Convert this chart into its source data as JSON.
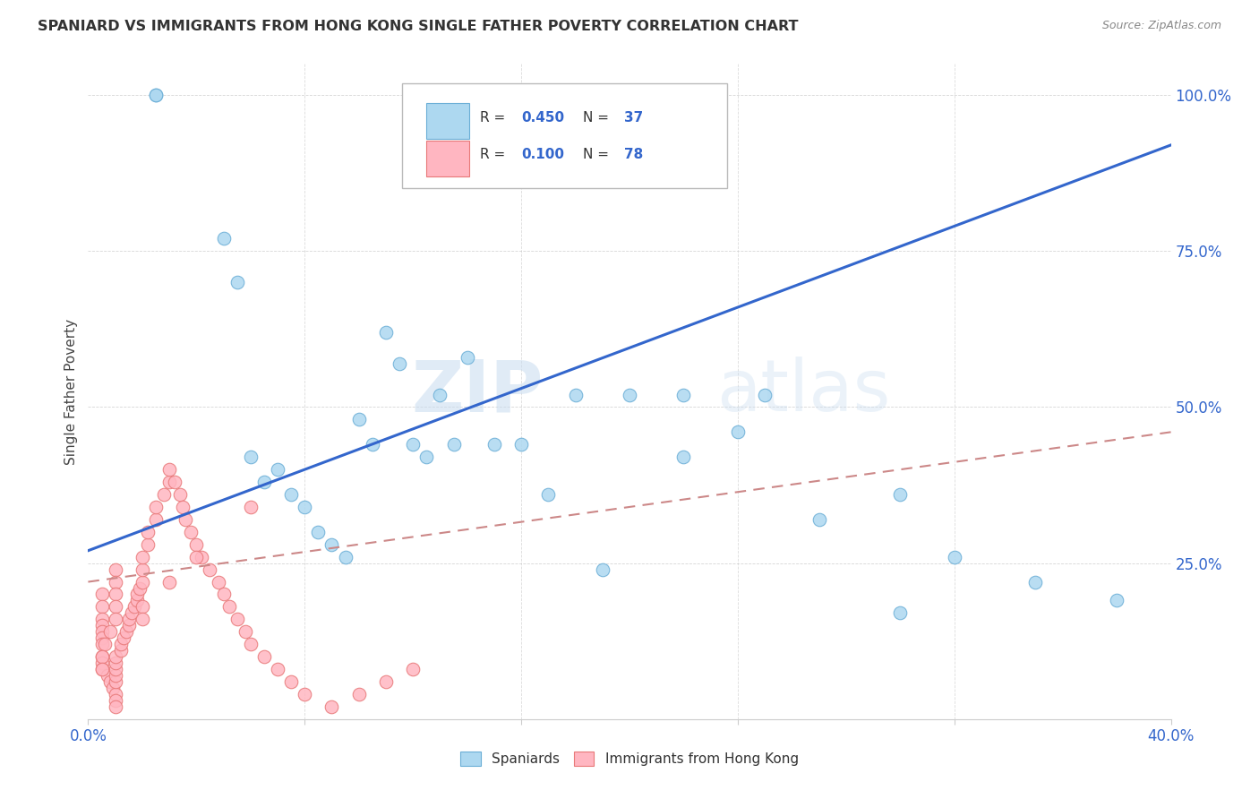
{
  "title": "SPANIARD VS IMMIGRANTS FROM HONG KONG SINGLE FATHER POVERTY CORRELATION CHART",
  "source": "Source: ZipAtlas.com",
  "ylabel": "Single Father Poverty",
  "yticks": [
    0.0,
    0.25,
    0.5,
    0.75,
    1.0
  ],
  "ytick_labels": [
    "",
    "25.0%",
    "50.0%",
    "75.0%",
    "100.0%"
  ],
  "xticks": [
    0.0,
    0.08,
    0.16,
    0.24,
    0.32,
    0.4
  ],
  "xtick_labels": [
    "0.0%",
    "",
    "",
    "",
    "",
    "40.0%"
  ],
  "xlim": [
    0.0,
    0.4
  ],
  "ylim": [
    0.0,
    1.05
  ],
  "legend_blue_r": "0.450",
  "legend_blue_n": "37",
  "legend_pink_r": "0.100",
  "legend_pink_n": "78",
  "legend_label_blue": "Spaniards",
  "legend_label_pink": "Immigrants from Hong Kong",
  "blue_color": "#ADD8F0",
  "pink_color": "#FFB6C1",
  "blue_edge_color": "#6aaed6",
  "pink_edge_color": "#E87878",
  "blue_line_color": "#3366CC",
  "pink_line_color": "#CC8888",
  "watermark": "ZIPatlas",
  "blue_line_x0": 0.0,
  "blue_line_y0": 0.27,
  "blue_line_x1": 0.4,
  "blue_line_y1": 0.92,
  "pink_line_x0": 0.0,
  "pink_line_y0": 0.22,
  "pink_line_x1": 0.4,
  "pink_line_y1": 0.46,
  "blue_scatter_x": [
    0.025,
    0.025,
    0.05,
    0.055,
    0.06,
    0.065,
    0.07,
    0.075,
    0.08,
    0.085,
    0.09,
    0.095,
    0.1,
    0.105,
    0.11,
    0.115,
    0.12,
    0.125,
    0.13,
    0.135,
    0.14,
    0.15,
    0.16,
    0.17,
    0.18,
    0.19,
    0.2,
    0.22,
    0.24,
    0.25,
    0.27,
    0.3,
    0.32,
    0.35,
    0.38,
    0.3,
    0.22
  ],
  "blue_scatter_y": [
    1.0,
    1.0,
    0.77,
    0.7,
    0.42,
    0.38,
    0.4,
    0.36,
    0.34,
    0.3,
    0.28,
    0.26,
    0.48,
    0.44,
    0.62,
    0.57,
    0.44,
    0.42,
    0.52,
    0.44,
    0.58,
    0.44,
    0.44,
    0.36,
    0.52,
    0.24,
    0.52,
    0.42,
    0.46,
    0.52,
    0.32,
    0.36,
    0.26,
    0.22,
    0.19,
    0.17,
    0.52
  ],
  "pink_scatter_x": [
    0.005,
    0.005,
    0.005,
    0.005,
    0.005,
    0.005,
    0.005,
    0.005,
    0.005,
    0.005,
    0.007,
    0.008,
    0.009,
    0.01,
    0.01,
    0.01,
    0.01,
    0.01,
    0.01,
    0.01,
    0.01,
    0.012,
    0.012,
    0.013,
    0.014,
    0.015,
    0.015,
    0.016,
    0.017,
    0.018,
    0.018,
    0.019,
    0.02,
    0.02,
    0.02,
    0.022,
    0.022,
    0.025,
    0.025,
    0.028,
    0.03,
    0.03,
    0.032,
    0.034,
    0.035,
    0.036,
    0.038,
    0.04,
    0.042,
    0.045,
    0.048,
    0.05,
    0.052,
    0.055,
    0.058,
    0.06,
    0.065,
    0.07,
    0.075,
    0.08,
    0.09,
    0.1,
    0.11,
    0.12,
    0.06,
    0.04,
    0.03,
    0.02,
    0.02,
    0.01,
    0.01,
    0.01,
    0.01,
    0.01,
    0.008,
    0.006,
    0.005,
    0.005
  ],
  "pink_scatter_y": [
    0.2,
    0.18,
    0.16,
    0.15,
    0.14,
    0.13,
    0.12,
    0.1,
    0.09,
    0.08,
    0.07,
    0.06,
    0.05,
    0.04,
    0.03,
    0.02,
    0.06,
    0.07,
    0.08,
    0.09,
    0.1,
    0.11,
    0.12,
    0.13,
    0.14,
    0.15,
    0.16,
    0.17,
    0.18,
    0.19,
    0.2,
    0.21,
    0.22,
    0.24,
    0.26,
    0.28,
    0.3,
    0.32,
    0.34,
    0.36,
    0.38,
    0.4,
    0.38,
    0.36,
    0.34,
    0.32,
    0.3,
    0.28,
    0.26,
    0.24,
    0.22,
    0.2,
    0.18,
    0.16,
    0.14,
    0.12,
    0.1,
    0.08,
    0.06,
    0.04,
    0.02,
    0.04,
    0.06,
    0.08,
    0.34,
    0.26,
    0.22,
    0.18,
    0.16,
    0.24,
    0.22,
    0.2,
    0.18,
    0.16,
    0.14,
    0.12,
    0.1,
    0.08
  ]
}
